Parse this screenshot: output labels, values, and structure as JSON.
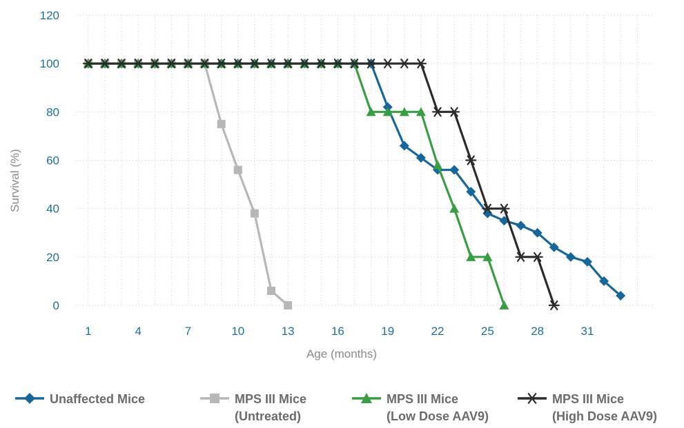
{
  "chart_data": {
    "type": "line",
    "xlabel": "Age (months)",
    "ylabel": "Survival (%)",
    "xlim": [
      0.3,
      34.9
    ],
    "ylim": [
      0,
      120
    ],
    "x_ticks": [
      "1",
      "4",
      "7",
      "10",
      "13",
      "16",
      "19",
      "22",
      "25",
      "28",
      "31"
    ],
    "y_ticks": [
      "0",
      "20",
      "40",
      "60",
      "80",
      "100",
      "120"
    ],
    "grid": "dotted",
    "legend_position": "bottom",
    "series": [
      {
        "name": "Unaffected Mice",
        "legend_lines": [
          "Unaffected Mice"
        ],
        "marker": "diamond",
        "color": "#17669a",
        "x": [
          1,
          2,
          3,
          4,
          5,
          6,
          7,
          8,
          9,
          10,
          11,
          12,
          13,
          14,
          15,
          16,
          17,
          18,
          19,
          20,
          21,
          22,
          23,
          24,
          25,
          26,
          27,
          28,
          29,
          30,
          31,
          32,
          33
        ],
        "y": [
          100,
          100,
          100,
          100,
          100,
          100,
          100,
          100,
          100,
          100,
          100,
          100,
          100,
          100,
          100,
          100,
          100,
          100,
          82,
          66,
          61,
          56,
          56,
          47,
          38,
          35,
          33,
          30,
          24,
          20,
          18,
          10,
          4
        ]
      },
      {
        "name": "MPS III Mice (Untreated)",
        "legend_lines": [
          "MPS III Mice",
          "(Untreated)"
        ],
        "marker": "square",
        "color": "#b7b7b7",
        "x": [
          1,
          2,
          3,
          4,
          5,
          6,
          7,
          8,
          9,
          10,
          11,
          12,
          13
        ],
        "y": [
          100,
          100,
          100,
          100,
          100,
          100,
          100,
          100,
          75,
          56,
          38,
          6,
          0
        ]
      },
      {
        "name": "MPS III Mice (Low Dose AAV9)",
        "legend_lines": [
          "MPS III Mice",
          "(Low Dose AAV9)"
        ],
        "marker": "triangle",
        "color": "#3a9c45",
        "x": [
          1,
          2,
          3,
          4,
          5,
          6,
          7,
          8,
          9,
          10,
          11,
          12,
          13,
          14,
          15,
          16,
          17,
          18,
          19,
          20,
          21,
          22,
          23,
          24,
          25,
          26
        ],
        "y": [
          100,
          100,
          100,
          100,
          100,
          100,
          100,
          100,
          100,
          100,
          100,
          100,
          100,
          100,
          100,
          100,
          100,
          80,
          80,
          80,
          80,
          58,
          40,
          20,
          20,
          0
        ]
      },
      {
        "name": "MPS III Mice (High Dose AAV9)",
        "legend_lines": [
          "MPS III Mice",
          "(High Dose AAV9)"
        ],
        "marker": "asterisk",
        "color": "#2b2b2b",
        "x": [
          1,
          2,
          3,
          4,
          5,
          6,
          7,
          8,
          9,
          10,
          11,
          12,
          13,
          14,
          15,
          16,
          17,
          18,
          19,
          20,
          21,
          22,
          23,
          24,
          25,
          26,
          27,
          28,
          29
        ],
        "y": [
          100,
          100,
          100,
          100,
          100,
          100,
          100,
          100,
          100,
          100,
          100,
          100,
          100,
          100,
          100,
          100,
          100,
          100,
          100,
          100,
          100,
          80,
          80,
          60,
          40,
          40,
          20,
          20,
          0
        ]
      }
    ]
  }
}
